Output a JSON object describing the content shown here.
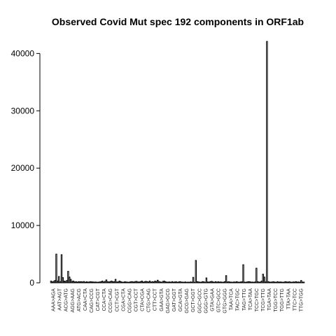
{
  "chart_data": {
    "type": "bar",
    "title": "Observed Covid Mut spec 192 components in ORF1ab",
    "xlabel": "",
    "ylabel": "",
    "ylim": [
      0,
      42000
    ],
    "yticks": [
      0,
      10000,
      20000,
      30000,
      40000
    ],
    "grid": false,
    "tick_labels": [
      "AAA>AGA",
      "AAT>AGT",
      "ACG>ATG",
      "AGG>AAG",
      "ATG>ACG",
      "CAA>CTA",
      "CAG>CCG",
      "CAT>CGT",
      "CCA>CTA",
      "CCG>CAG",
      "CCT>CGT",
      "CGA>CTA",
      "CGG>CAG",
      "CGT>CCT",
      "CTA>CGA",
      "CTG>CAG",
      "CTT>CCT",
      "GAA>GTA",
      "GAG>GCG",
      "GAT>GGT",
      "GCA>GTA",
      "GCG>GAG",
      "GCT>GGT",
      "GGC>GCC",
      "GGG>GTG",
      "GTA>GAA",
      "GTC>GCC",
      "GTG>GGG",
      "TAA>TCA",
      "TAC>TGC",
      "TAG>TTG",
      "TCA>TAA",
      "TCC>TGC",
      "TCG>TTG",
      "TGA>TAA",
      "TGG>TCC",
      "TGG>TTG",
      "TTA>TAA",
      "TTC>TCC",
      "TTG>TGG"
    ],
    "values": [
      300,
      150,
      250,
      400,
      5000,
      300,
      1100,
      200,
      4900,
      900,
      300,
      250,
      400,
      2000,
      1000,
      600,
      250,
      300,
      150,
      200,
      120,
      200,
      180,
      200,
      150,
      220,
      100,
      180,
      120,
      150,
      200,
      160,
      150,
      120,
      140,
      100,
      120,
      150,
      180,
      300,
      130,
      250,
      500,
      200,
      150,
      220,
      300,
      180,
      200,
      600,
      150,
      150,
      300,
      200,
      120,
      100,
      180,
      150,
      120,
      100,
      150,
      200,
      180,
      130,
      220,
      250,
      150,
      140,
      200,
      300,
      120,
      180,
      250,
      200,
      150,
      300,
      120,
      200,
      150,
      300,
      200,
      450,
      220,
      150,
      100,
      250,
      300,
      180,
      120,
      130,
      150,
      100,
      200,
      120,
      150,
      180,
      100,
      150,
      200,
      130,
      120,
      100,
      150,
      90,
      120,
      100,
      150,
      120,
      950,
      100,
      3900,
      200,
      150,
      120,
      100,
      200,
      180,
      100,
      850,
      150,
      120,
      200,
      250,
      150,
      100,
      200,
      120,
      180,
      130,
      150,
      100,
      120,
      200,
      1250,
      150,
      180,
      130,
      120,
      100,
      150,
      120,
      200,
      130,
      100,
      150,
      180,
      3150,
      120,
      100,
      150,
      200,
      180,
      120,
      130,
      100,
      150,
      2550,
      200,
      120,
      150,
      300,
      1500,
      1000,
      150,
      42100,
      200,
      130,
      120,
      150,
      180,
      130,
      100,
      200,
      120,
      150,
      130,
      100,
      120,
      200,
      150,
      130,
      180,
      120,
      100,
      150,
      130,
      200,
      120,
      150,
      100,
      400,
      130,
      120
    ]
  }
}
